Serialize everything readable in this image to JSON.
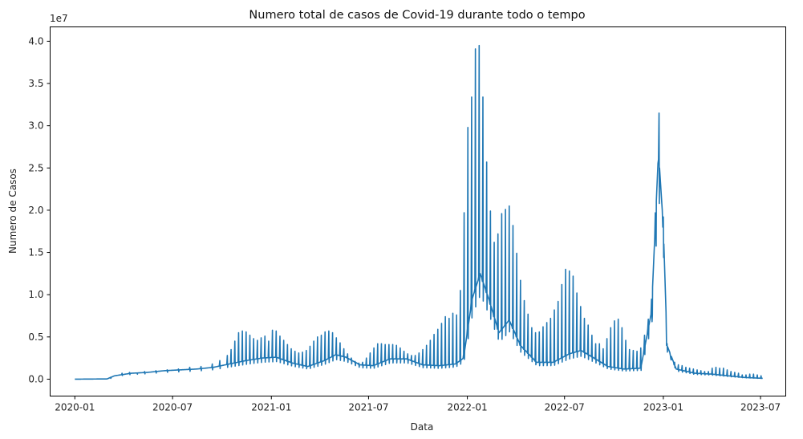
{
  "chart_data": {
    "type": "line",
    "title": "Numero total de casos de Covid-19 durante todo o tempo",
    "xlabel": "Data",
    "ylabel": "Numero de Casos",
    "y_offset_text": "1e7",
    "y_scale": 10000000,
    "xlim": [
      "2019-11-16",
      "2023-08-17"
    ],
    "ylim": [
      -0.2,
      4.17
    ],
    "grid": false,
    "line_color": "#1f77b4",
    "x_ticks": [
      "2020-01-01",
      "2020-07-01",
      "2021-01-01",
      "2021-07-01",
      "2022-01-01",
      "2022-07-01",
      "2023-01-01",
      "2023-07-01"
    ],
    "x_tick_labels": [
      "2020-01",
      "2020-07",
      "2021-01",
      "2021-07",
      "2022-01",
      "2022-07",
      "2023-01",
      "2023-07"
    ],
    "y_ticks": [
      0,
      0.5,
      1.0,
      1.5,
      2.0,
      2.5,
      3.0,
      3.5,
      4.0
    ],
    "y_tick_labels": [
      "0.0",
      "0.5",
      "1.0",
      "1.5",
      "2.0",
      "2.5",
      "3.0",
      "3.5",
      "4.0"
    ],
    "series": [
      {
        "baseline": [
          [
            "2020-01-01",
            0.0
          ],
          [
            "2020-03-01",
            0.003
          ],
          [
            "2020-03-15",
            0.04
          ],
          [
            "2020-04-15",
            0.07
          ],
          [
            "2020-05-15",
            0.08
          ],
          [
            "2020-06-15",
            0.1
          ],
          [
            "2020-07-15",
            0.11
          ],
          [
            "2020-08-15",
            0.12
          ],
          [
            "2020-09-15",
            0.14
          ],
          [
            "2020-10-15",
            0.18
          ],
          [
            "2020-11-15",
            0.22
          ],
          [
            "2020-12-15",
            0.25
          ],
          [
            "2021-01-10",
            0.26
          ],
          [
            "2021-02-10",
            0.19
          ],
          [
            "2021-03-10",
            0.15
          ],
          [
            "2021-04-10",
            0.22
          ],
          [
            "2021-05-01",
            0.29
          ],
          [
            "2021-05-20",
            0.26
          ],
          [
            "2021-06-15",
            0.17
          ],
          [
            "2021-07-10",
            0.16
          ],
          [
            "2021-08-10",
            0.24
          ],
          [
            "2021-09-10",
            0.24
          ],
          [
            "2021-10-10",
            0.17
          ],
          [
            "2021-11-10",
            0.16
          ],
          [
            "2021-12-10",
            0.18
          ],
          [
            "2021-12-25",
            0.25
          ],
          [
            "2022-01-10",
            0.95
          ],
          [
            "2022-01-25",
            1.25
          ],
          [
            "2022-02-10",
            0.95
          ],
          [
            "2022-03-01",
            0.55
          ],
          [
            "2022-03-20",
            0.7
          ],
          [
            "2022-04-10",
            0.4
          ],
          [
            "2022-05-10",
            0.2
          ],
          [
            "2022-06-10",
            0.2
          ],
          [
            "2022-07-10",
            0.3
          ],
          [
            "2022-08-01",
            0.34
          ],
          [
            "2022-08-25",
            0.25
          ],
          [
            "2022-09-20",
            0.15
          ],
          [
            "2022-10-20",
            0.12
          ],
          [
            "2022-11-20",
            0.13
          ],
          [
            "2022-12-10",
            0.8
          ],
          [
            "2022-12-23",
            2.7
          ],
          [
            "2023-01-01",
            1.8
          ],
          [
            "2023-01-08",
            0.4
          ],
          [
            "2023-01-25",
            0.12
          ],
          [
            "2023-03-01",
            0.07
          ],
          [
            "2023-04-01",
            0.06
          ],
          [
            "2023-05-01",
            0.04
          ],
          [
            "2023-06-01",
            0.02
          ],
          [
            "2023-07-05",
            0.01
          ]
        ],
        "weekly_peaks": [
          [
            "2020-01-05",
            0.0
          ],
          [
            "2020-03-08",
            0.01
          ],
          [
            "2020-03-29",
            0.07
          ],
          [
            "2020-04-12",
            0.08
          ],
          [
            "2020-04-26",
            0.07
          ],
          [
            "2020-05-10",
            0.09
          ],
          [
            "2020-05-31",
            0.1
          ],
          [
            "2020-06-21",
            0.11
          ],
          [
            "2020-07-12",
            0.12
          ],
          [
            "2020-08-02",
            0.14
          ],
          [
            "2020-08-23",
            0.15
          ],
          [
            "2020-09-13",
            0.18
          ],
          [
            "2020-09-27",
            0.22
          ],
          [
            "2020-10-11",
            0.28
          ],
          [
            "2020-10-18",
            0.35
          ],
          [
            "2020-10-25",
            0.45
          ],
          [
            "2020-11-01",
            0.55
          ],
          [
            "2020-11-08",
            0.57
          ],
          [
            "2020-11-15",
            0.56
          ],
          [
            "2020-11-22",
            0.52
          ],
          [
            "2020-11-29",
            0.48
          ],
          [
            "2020-12-06",
            0.46
          ],
          [
            "2020-12-13",
            0.49
          ],
          [
            "2020-12-20",
            0.51
          ],
          [
            "2020-12-27",
            0.45
          ],
          [
            "2021-01-03",
            0.58
          ],
          [
            "2021-01-10",
            0.57
          ],
          [
            "2021-01-17",
            0.51
          ],
          [
            "2021-01-24",
            0.46
          ],
          [
            "2021-01-31",
            0.41
          ],
          [
            "2021-02-07",
            0.36
          ],
          [
            "2021-02-14",
            0.33
          ],
          [
            "2021-02-21",
            0.31
          ],
          [
            "2021-02-28",
            0.32
          ],
          [
            "2021-03-07",
            0.34
          ],
          [
            "2021-03-14",
            0.39
          ],
          [
            "2021-03-21",
            0.45
          ],
          [
            "2021-03-28",
            0.5
          ],
          [
            "2021-04-04",
            0.52
          ],
          [
            "2021-04-11",
            0.56
          ],
          [
            "2021-04-18",
            0.57
          ],
          [
            "2021-04-25",
            0.55
          ],
          [
            "2021-05-02",
            0.49
          ],
          [
            "2021-05-09",
            0.43
          ],
          [
            "2021-05-16",
            0.36
          ],
          [
            "2021-05-23",
            0.3
          ],
          [
            "2021-05-30",
            0.25
          ],
          [
            "2021-06-06",
            0.21
          ],
          [
            "2021-06-13",
            0.19
          ],
          [
            "2021-06-20",
            0.2
          ],
          [
            "2021-06-27",
            0.25
          ],
          [
            "2021-07-04",
            0.31
          ],
          [
            "2021-07-11",
            0.37
          ],
          [
            "2021-07-18",
            0.42
          ],
          [
            "2021-07-25",
            0.42
          ],
          [
            "2021-08-01",
            0.41
          ],
          [
            "2021-08-08",
            0.41
          ],
          [
            "2021-08-15",
            0.41
          ],
          [
            "2021-08-22",
            0.4
          ],
          [
            "2021-08-29",
            0.37
          ],
          [
            "2021-09-05",
            0.33
          ],
          [
            "2021-09-12",
            0.3
          ],
          [
            "2021-09-19",
            0.28
          ],
          [
            "2021-09-26",
            0.28
          ],
          [
            "2021-10-03",
            0.31
          ],
          [
            "2021-10-10",
            0.35
          ],
          [
            "2021-10-17",
            0.4
          ],
          [
            "2021-10-24",
            0.46
          ],
          [
            "2021-10-31",
            0.53
          ],
          [
            "2021-11-07",
            0.59
          ],
          [
            "2021-11-14",
            0.66
          ],
          [
            "2021-11-21",
            0.74
          ],
          [
            "2021-11-28",
            0.72
          ],
          [
            "2021-12-05",
            0.78
          ],
          [
            "2021-12-12",
            0.76
          ],
          [
            "2021-12-19",
            1.05
          ],
          [
            "2021-12-26",
            1.97
          ],
          [
            "2022-01-02",
            2.98
          ],
          [
            "2022-01-09",
            3.34
          ],
          [
            "2022-01-16",
            3.91
          ],
          [
            "2022-01-23",
            3.95
          ],
          [
            "2022-01-30",
            3.34
          ],
          [
            "2022-02-06",
            2.57
          ],
          [
            "2022-02-13",
            1.99
          ],
          [
            "2022-02-20",
            1.62
          ],
          [
            "2022-02-27",
            1.72
          ],
          [
            "2022-03-06",
            1.96
          ],
          [
            "2022-03-13",
            2.01
          ],
          [
            "2022-03-20",
            2.05
          ],
          [
            "2022-03-27",
            1.82
          ],
          [
            "2022-04-03",
            1.49
          ],
          [
            "2022-04-10",
            1.17
          ],
          [
            "2022-04-17",
            0.93
          ],
          [
            "2022-04-24",
            0.77
          ],
          [
            "2022-05-01",
            0.61
          ],
          [
            "2022-05-08",
            0.55
          ],
          [
            "2022-05-15",
            0.56
          ],
          [
            "2022-05-22",
            0.62
          ],
          [
            "2022-05-29",
            0.67
          ],
          [
            "2022-06-05",
            0.72
          ],
          [
            "2022-06-12",
            0.82
          ],
          [
            "2022-06-19",
            0.92
          ],
          [
            "2022-06-26",
            1.12
          ],
          [
            "2022-07-03",
            1.3
          ],
          [
            "2022-07-10",
            1.28
          ],
          [
            "2022-07-17",
            1.22
          ],
          [
            "2022-07-24",
            1.02
          ],
          [
            "2022-07-31",
            0.86
          ],
          [
            "2022-08-07",
            0.72
          ],
          [
            "2022-08-14",
            0.64
          ],
          [
            "2022-08-21",
            0.52
          ],
          [
            "2022-08-28",
            0.42
          ],
          [
            "2022-09-04",
            0.42
          ],
          [
            "2022-09-11",
            0.36
          ],
          [
            "2022-09-18",
            0.48
          ],
          [
            "2022-09-25",
            0.61
          ],
          [
            "2022-10-02",
            0.69
          ],
          [
            "2022-10-09",
            0.71
          ],
          [
            "2022-10-16",
            0.61
          ],
          [
            "2022-10-23",
            0.46
          ],
          [
            "2022-10-30",
            0.35
          ],
          [
            "2022-11-06",
            0.34
          ],
          [
            "2022-11-13",
            0.33
          ],
          [
            "2022-11-20",
            0.37
          ],
          [
            "2022-11-27",
            0.52
          ],
          [
            "2022-12-04",
            0.71
          ],
          [
            "2022-12-11",
            0.68
          ],
          [
            "2022-12-18",
            1.78
          ],
          [
            "2022-12-24",
            3.15
          ],
          [
            "2023-01-01",
            1.92
          ],
          [
            "2023-01-08",
            0.42
          ],
          [
            "2023-01-15",
            0.24
          ],
          [
            "2023-01-22",
            0.2
          ],
          [
            "2023-01-29",
            0.17
          ],
          [
            "2023-02-05",
            0.16
          ],
          [
            "2023-02-12",
            0.14
          ],
          [
            "2023-02-19",
            0.13
          ],
          [
            "2023-02-26",
            0.12
          ],
          [
            "2023-03-05",
            0.11
          ],
          [
            "2023-03-12",
            0.1
          ],
          [
            "2023-03-19",
            0.09
          ],
          [
            "2023-03-26",
            0.09
          ],
          [
            "2023-04-02",
            0.13
          ],
          [
            "2023-04-09",
            0.14
          ],
          [
            "2023-04-16",
            0.13
          ],
          [
            "2023-04-23",
            0.13
          ],
          [
            "2023-04-30",
            0.11
          ],
          [
            "2023-05-07",
            0.09
          ],
          [
            "2023-05-14",
            0.08
          ],
          [
            "2023-05-21",
            0.07
          ],
          [
            "2023-05-28",
            0.05
          ],
          [
            "2023-06-04",
            0.05
          ],
          [
            "2023-06-11",
            0.06
          ],
          [
            "2023-06-18",
            0.06
          ],
          [
            "2023-06-25",
            0.05
          ],
          [
            "2023-07-02",
            0.04
          ]
        ]
      }
    ]
  }
}
